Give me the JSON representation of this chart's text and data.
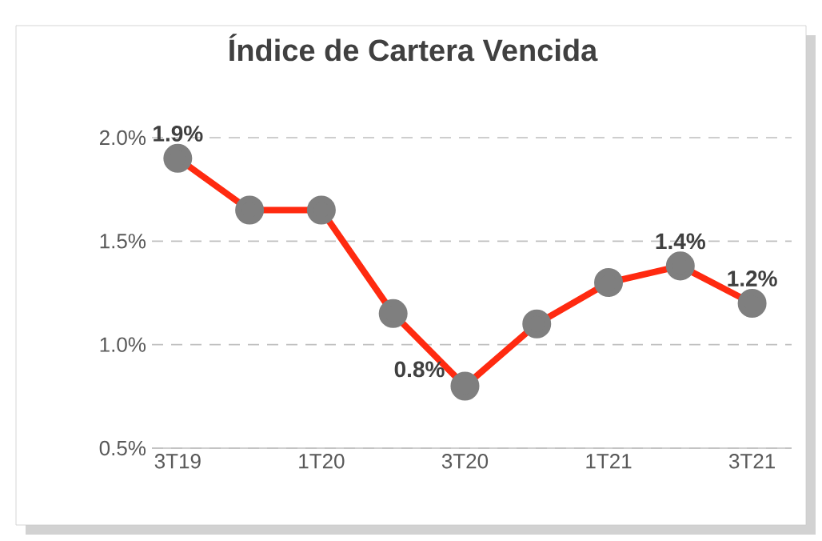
{
  "chart_data": {
    "type": "line",
    "title": "Índice de Cartera Vencida",
    "categories": [
      "3T19",
      null,
      "1T20",
      null,
      "3T20",
      null,
      "1T21",
      null,
      "3T21"
    ],
    "series": [
      {
        "color": "#ff2a10",
        "values": [
          1.9,
          1.65,
          1.65,
          1.15,
          0.8,
          1.1,
          1.3,
          1.38,
          1.2
        ],
        "value_labels": [
          "1.9%",
          null,
          null,
          null,
          "0.8%",
          null,
          null,
          "1.4%",
          "1.2%"
        ]
      }
    ],
    "ylim": [
      0.5,
      2.0
    ],
    "yticks": [
      {
        "value": 0.5,
        "label": "0.5%"
      },
      {
        "value": 1.0,
        "label": "1.0%"
      },
      {
        "value": 1.5,
        "label": "1.5%"
      },
      {
        "value": 2.0,
        "label": "2.0%"
      }
    ],
    "grid": "y",
    "marker": "circle",
    "line_style": "solid"
  }
}
